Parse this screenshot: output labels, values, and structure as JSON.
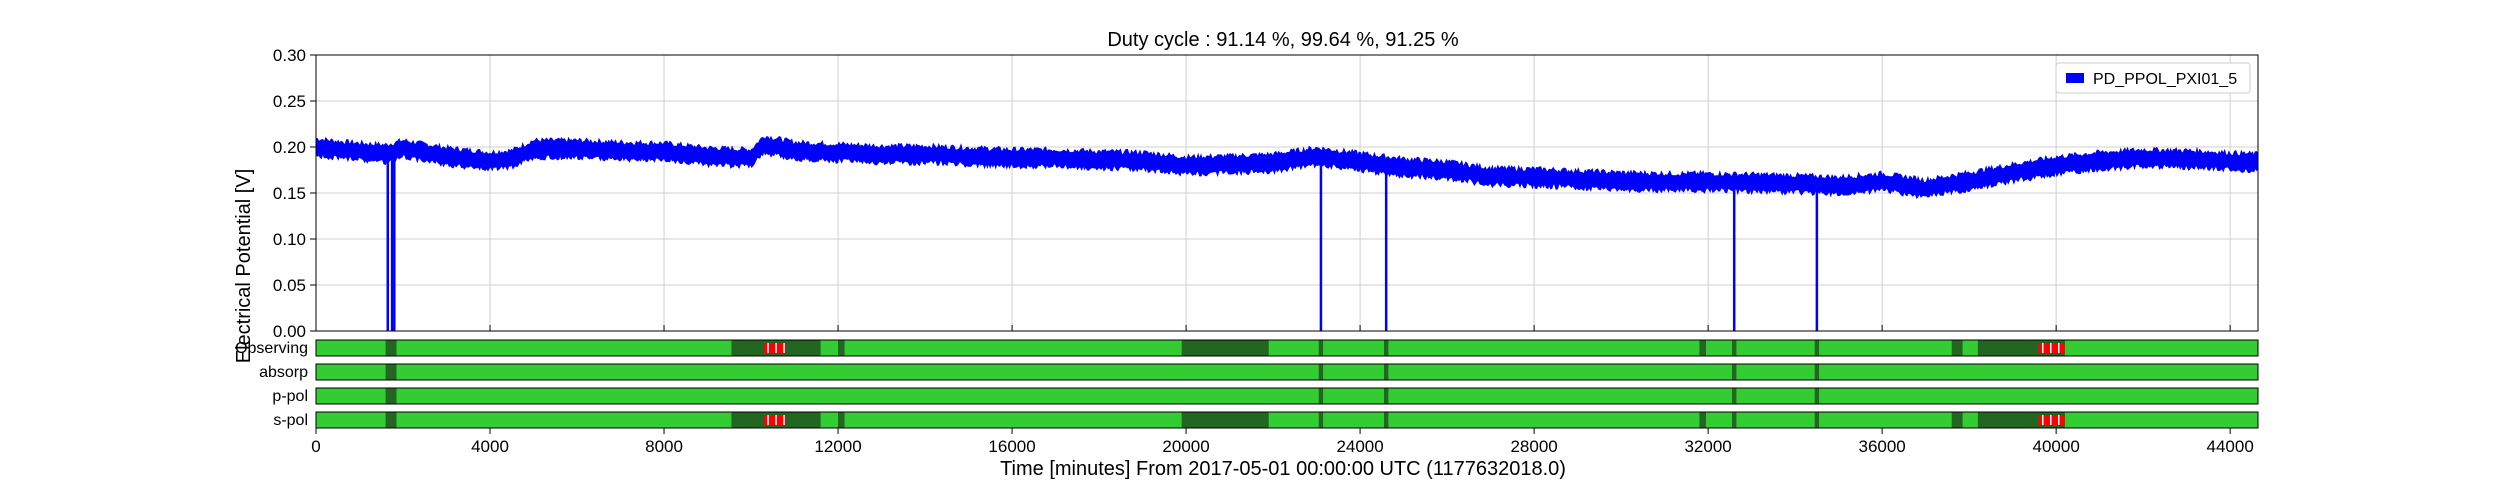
{
  "chart_data": {
    "type": "line",
    "title": "Duty cycle : 91.14 %, 99.64 %, 91.25 %",
    "xlabel": "Time [minutes] From 2017-05-01 00:00:00 UTC (1177632018.0)",
    "ylabel": "Electrical Potential [V]",
    "xlim": [
      0,
      44640
    ],
    "ylim": [
      0,
      0.3
    ],
    "grid": true,
    "legend_position": "top-right",
    "xticks": [
      "0",
      "4000",
      "8000",
      "12000",
      "16000",
      "20000",
      "24000",
      "28000",
      "32000",
      "36000",
      "40000",
      "44000"
    ],
    "yticks": [
      "0.00",
      "0.05",
      "0.10",
      "0.15",
      "0.20",
      "0.25",
      "0.30"
    ],
    "series": [
      {
        "name": "PD_PPOL_PXI01_5",
        "color": "#0000ff",
        "x": [
          0,
          500,
          1000,
          1600,
          2000,
          3000,
          4000,
          4500,
          5000,
          6000,
          7000,
          8000,
          9000,
          10000,
          10300,
          11000,
          12000,
          13000,
          14000,
          15000,
          16000,
          17000,
          18000,
          19000,
          20000,
          21000,
          22000,
          23000,
          24000,
          25000,
          26000,
          27000,
          28000,
          29000,
          30000,
          31000,
          32000,
          33000,
          34000,
          35000,
          36000,
          37000,
          38000,
          39000,
          40000,
          41000,
          42000,
          43000,
          44640
        ],
        "y": [
          0.2,
          0.197,
          0.195,
          0.193,
          0.198,
          0.19,
          0.185,
          0.187,
          0.198,
          0.198,
          0.196,
          0.195,
          0.19,
          0.188,
          0.203,
          0.196,
          0.194,
          0.192,
          0.192,
          0.19,
          0.188,
          0.188,
          0.186,
          0.185,
          0.18,
          0.181,
          0.183,
          0.19,
          0.184,
          0.178,
          0.175,
          0.168,
          0.167,
          0.165,
          0.163,
          0.162,
          0.162,
          0.161,
          0.16,
          0.158,
          0.162,
          0.155,
          0.163,
          0.172,
          0.18,
          0.185,
          0.188,
          0.187,
          0.183
        ],
        "dropouts_to_zero": [
          1650,
          1750,
          1800,
          23100,
          24600,
          32600,
          34500
        ]
      }
    ],
    "flag_rows": {
      "labels": [
        "Observing",
        "absorp",
        "p-pol",
        "s-pol"
      ],
      "colors": {
        "active": "#33cc33",
        "inactive": "#226622",
        "known": "#ff0000"
      },
      "inactive_segments": [
        [
          [
            1600,
            1850
          ],
          [
            9550,
            11600
          ],
          [
            12000,
            12150
          ],
          [
            19900,
            21900
          ],
          [
            23050,
            23150
          ],
          [
            24550,
            24650
          ],
          [
            31800,
            31950
          ],
          [
            32550,
            32650
          ],
          [
            34450,
            34550
          ],
          [
            37600,
            37850
          ],
          [
            38200,
            40200
          ]
        ],
        [
          [
            1600,
            1850
          ],
          [
            23050,
            23150
          ],
          [
            24550,
            24650
          ],
          [
            32550,
            32650
          ],
          [
            34450,
            34550
          ]
        ],
        [
          [
            1600,
            1850
          ],
          [
            23050,
            23150
          ],
          [
            24550,
            24650
          ],
          [
            32550,
            32650
          ],
          [
            34450,
            34550
          ]
        ],
        [
          [
            1600,
            1850
          ],
          [
            9550,
            11600
          ],
          [
            12000,
            12150
          ],
          [
            19900,
            21900
          ],
          [
            23050,
            23150
          ],
          [
            24550,
            24650
          ],
          [
            31800,
            31950
          ],
          [
            32550,
            32650
          ],
          [
            34450,
            34550
          ],
          [
            37600,
            37850
          ],
          [
            38200,
            40200
          ]
        ]
      ],
      "known_segments": [
        [
          [
            10300,
            10800
          ],
          [
            39600,
            40200
          ]
        ],
        [],
        [],
        [
          [
            10300,
            10800
          ],
          [
            39600,
            40200
          ]
        ]
      ]
    }
  }
}
